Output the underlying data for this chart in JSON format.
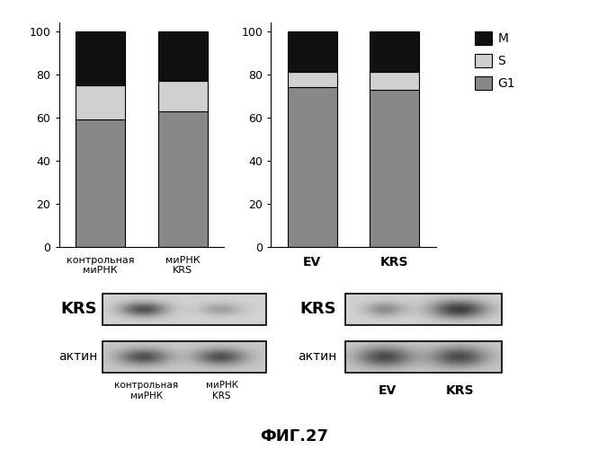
{
  "chart1": {
    "categories": [
      "контрольная\nмиРНК",
      "миРНК\nKRS"
    ],
    "G1": [
      59,
      63
    ],
    "S": [
      16,
      14
    ],
    "M": [
      25,
      23
    ],
    "colors": {
      "G1": "#888888",
      "S": "#d0d0d0",
      "M": "#111111"
    }
  },
  "chart2": {
    "categories": [
      "EV",
      "KRS"
    ],
    "G1": [
      74,
      73
    ],
    "S": [
      7,
      8
    ],
    "M": [
      19,
      19
    ],
    "colors": {
      "G1": "#888888",
      "S": "#d0d0d0",
      "M": "#111111"
    }
  },
  "western1": {
    "label_left1": "KRS",
    "label_left2": "актин",
    "xlabel1": "контрольная\nмиРНК",
    "xlabel2": "миРНК\nKRS"
  },
  "western2": {
    "label_left1": "KRS",
    "label_left2": "актин",
    "xlabel1": "EV",
    "xlabel2": "KRS"
  },
  "figure_title": "ФИГ.27",
  "legend_labels": [
    "M",
    "S",
    "G1"
  ],
  "legend_colors": [
    "#111111",
    "#d0d0d0",
    "#888888"
  ]
}
